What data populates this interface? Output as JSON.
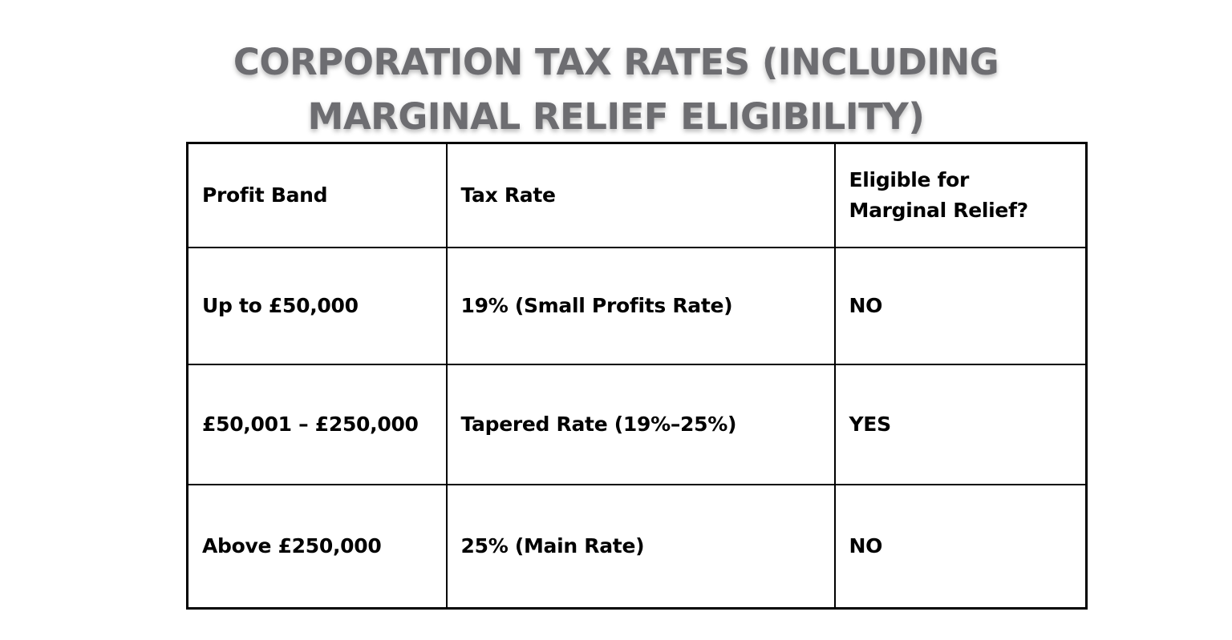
{
  "title": {
    "line1": "CORPORATION TAX RATES (INCLUDING",
    "line2": "MARGINAL RELIEF ELIGIBILITY)",
    "color": "#6d6d71"
  },
  "table": {
    "headers": [
      "Profit Band",
      "Tax Rate",
      "Eligible for Marginal Relief?"
    ],
    "rows": [
      [
        "Up to £50,000",
        "19% (Small Profits Rate)",
        "NO"
      ],
      [
        "£50,001 – £250,000",
        "Tapered Rate (19%–25%)",
        "YES"
      ],
      [
        "Above £250,000",
        "25% (Main Rate)",
        "NO"
      ]
    ],
    "border_color": "#000000"
  }
}
